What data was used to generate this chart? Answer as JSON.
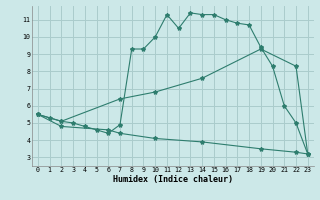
{
  "title": "",
  "xlabel": "Humidex (Indice chaleur)",
  "bg_color": "#cce8e8",
  "grid_color": "#aacccc",
  "line_color": "#2e7d6e",
  "xlim": [
    -0.5,
    23.5
  ],
  "ylim": [
    2.5,
    11.8
  ],
  "xticks": [
    0,
    1,
    2,
    3,
    4,
    5,
    6,
    7,
    8,
    9,
    10,
    11,
    12,
    13,
    14,
    15,
    16,
    17,
    18,
    19,
    20,
    21,
    22,
    23
  ],
  "yticks": [
    3,
    4,
    5,
    6,
    7,
    8,
    9,
    10,
    11
  ],
  "series": [
    {
      "x": [
        0,
        1,
        2,
        3,
        4,
        5,
        6,
        7,
        8,
        9,
        10,
        11,
        12,
        13,
        14,
        15,
        16,
        17,
        18,
        19,
        20,
        21,
        22,
        23
      ],
      "y": [
        5.5,
        5.3,
        5.1,
        5.0,
        4.8,
        4.6,
        4.4,
        4.9,
        9.3,
        9.3,
        10.0,
        11.3,
        10.5,
        11.4,
        11.3,
        11.3,
        11.0,
        10.8,
        10.7,
        9.4,
        8.3,
        6.0,
        5.0,
        3.2
      ]
    },
    {
      "x": [
        0,
        2,
        7,
        10,
        14,
        19,
        22,
        23
      ],
      "y": [
        5.5,
        5.1,
        6.4,
        6.8,
        7.6,
        9.3,
        8.3,
        3.2
      ]
    },
    {
      "x": [
        0,
        2,
        6,
        7,
        10,
        14,
        19,
        22,
        23
      ],
      "y": [
        5.5,
        4.8,
        4.6,
        4.4,
        4.1,
        3.9,
        3.5,
        3.3,
        3.2
      ]
    }
  ]
}
